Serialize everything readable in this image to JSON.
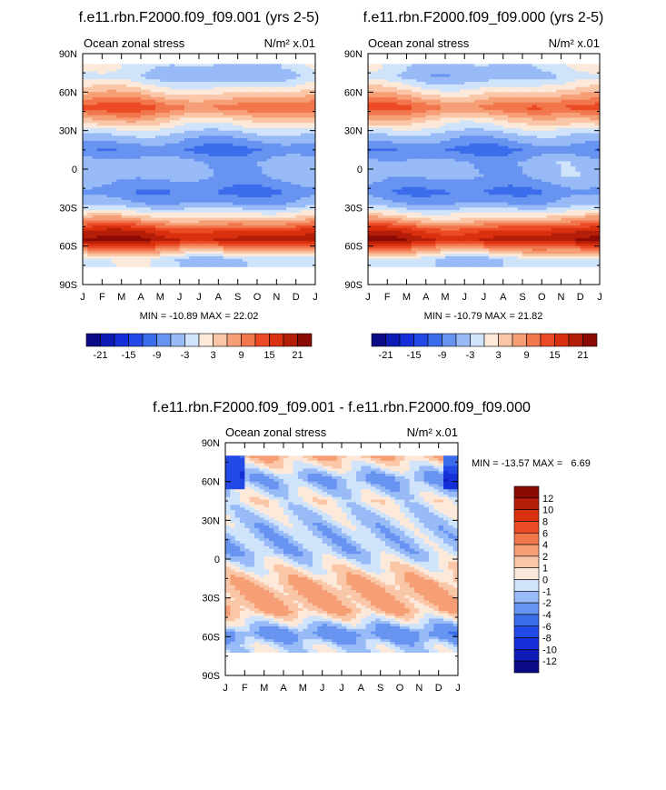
{
  "chart_data": [
    {
      "type": "heatmap",
      "title": "f.e11.rbn.F2000.f09_f09.001 (yrs 2-5)",
      "left_string": "Ocean zonal stress",
      "right_string": "N/m² x.01",
      "x_ticks": [
        "J",
        "F",
        "M",
        "A",
        "M",
        "J",
        "J",
        "A",
        "S",
        "O",
        "N",
        "D",
        "J"
      ],
      "y_ticks": [
        "90N",
        "60N",
        "30N",
        "0",
        "30S",
        "60S",
        "90S"
      ],
      "y_values": [
        90,
        60,
        30,
        0,
        -30,
        -60,
        -90
      ],
      "ylim": [
        -90,
        90
      ],
      "stats": "MIN = -10.89 MAX =  22.02",
      "min": -10.89,
      "max": 22.02,
      "colorbar": {
        "orientation": "horizontal",
        "levels": [
          -21,
          -18,
          -15,
          -12,
          -9,
          -6,
          -3,
          0,
          3,
          6,
          9,
          12,
          15,
          18,
          21
        ],
        "labels": [
          "-21",
          "-15",
          "-9",
          "-3",
          "3",
          "9",
          "15",
          "21"
        ],
        "colors": [
          "#0a0a86",
          "#0e1cb6",
          "#1530d8",
          "#2249e6",
          "#3a6cec",
          "#6694f0",
          "#98baf6",
          "#cfe3fb",
          "#fde9d9",
          "#f9c6a7",
          "#f69f77",
          "#f2764c",
          "#ec4a24",
          "#d9300f",
          "#b41e08",
          "#8b0b04"
        ]
      },
      "zonal_profile": [
        {
          "lat": 80,
          "value": -2
        },
        {
          "lat": 72,
          "value": -4
        },
        {
          "lat": 62,
          "value": 2
        },
        {
          "lat": 48,
          "value": 12
        },
        {
          "lat": 38,
          "value": 4
        },
        {
          "lat": 28,
          "value": -3
        },
        {
          "lat": 15,
          "value": -9
        },
        {
          "lat": 5,
          "value": -5
        },
        {
          "lat": -5,
          "value": -5
        },
        {
          "lat": -18,
          "value": -9
        },
        {
          "lat": -28,
          "value": -5
        },
        {
          "lat": -38,
          "value": 4
        },
        {
          "lat": -48,
          "value": 16
        },
        {
          "lat": -55,
          "value": 20
        },
        {
          "lat": -63,
          "value": 8
        },
        {
          "lat": -70,
          "value": -2
        }
      ]
    },
    {
      "type": "heatmap",
      "title": "f.e11.rbn.F2000.f09_f09.000 (yrs 2-5)",
      "left_string": "Ocean zonal stress",
      "right_string": "N/m² x.01",
      "x_ticks": [
        "J",
        "F",
        "M",
        "A",
        "M",
        "J",
        "J",
        "A",
        "S",
        "O",
        "N",
        "D",
        "J"
      ],
      "y_ticks": [
        "90N",
        "60N",
        "30N",
        "0",
        "30S",
        "60S",
        "90S"
      ],
      "y_values": [
        90,
        60,
        30,
        0,
        -30,
        -60,
        -90
      ],
      "ylim": [
        -90,
        90
      ],
      "stats": "MIN = -10.79 MAX =  21.82",
      "min": -10.79,
      "max": 21.82,
      "colorbar": {
        "orientation": "horizontal",
        "levels": [
          -21,
          -18,
          -15,
          -12,
          -9,
          -6,
          -3,
          0,
          3,
          6,
          9,
          12,
          15,
          18,
          21
        ],
        "labels": [
          "-21",
          "-15",
          "-9",
          "-3",
          "3",
          "9",
          "15",
          "21"
        ],
        "colors": [
          "#0a0a86",
          "#0e1cb6",
          "#1530d8",
          "#2249e6",
          "#3a6cec",
          "#6694f0",
          "#98baf6",
          "#cfe3fb",
          "#fde9d9",
          "#f9c6a7",
          "#f69f77",
          "#f2764c",
          "#ec4a24",
          "#d9300f",
          "#b41e08",
          "#8b0b04"
        ]
      },
      "zonal_profile": [
        {
          "lat": 80,
          "value": -2
        },
        {
          "lat": 72,
          "value": -4
        },
        {
          "lat": 62,
          "value": 2
        },
        {
          "lat": 48,
          "value": 12
        },
        {
          "lat": 38,
          "value": 4
        },
        {
          "lat": 28,
          "value": -3
        },
        {
          "lat": 15,
          "value": -9
        },
        {
          "lat": 5,
          "value": -5
        },
        {
          "lat": -5,
          "value": -5
        },
        {
          "lat": -18,
          "value": -9
        },
        {
          "lat": -28,
          "value": -5
        },
        {
          "lat": -38,
          "value": 4
        },
        {
          "lat": -48,
          "value": 16
        },
        {
          "lat": -55,
          "value": 20
        },
        {
          "lat": -63,
          "value": 8
        },
        {
          "lat": -70,
          "value": -2
        }
      ]
    },
    {
      "type": "heatmap",
      "title": "f.e11.rbn.F2000.f09_f09.001 - f.e11.rbn.F2000.f09_f09.000",
      "left_string": "Ocean zonal stress",
      "right_string": "N/m² x.01",
      "x_ticks": [
        "J",
        "F",
        "M",
        "A",
        "M",
        "J",
        "J",
        "A",
        "S",
        "O",
        "N",
        "D",
        "J"
      ],
      "y_ticks": [
        "90N",
        "60N",
        "30N",
        "0",
        "30S",
        "60S",
        "90S"
      ],
      "y_values": [
        90,
        60,
        30,
        0,
        -30,
        -60,
        -90
      ],
      "ylim": [
        -90,
        90
      ],
      "stats": "MIN = -13.57 MAX =   6.69",
      "min": -13.57,
      "max": 6.69,
      "colorbar": {
        "orientation": "vertical",
        "levels": [
          -12,
          -10,
          -8,
          -6,
          -4,
          -2,
          -1,
          0,
          1,
          2,
          4,
          6,
          8,
          10,
          12
        ],
        "labels": [
          "12",
          "10",
          "8",
          "6",
          "4",
          "2",
          "1",
          "0",
          "-1",
          "-2",
          "-4",
          "-6",
          "-8",
          "-10",
          "-12"
        ],
        "colors": [
          "#0a0a86",
          "#0e1cb6",
          "#1530d8",
          "#2249e6",
          "#3a6cec",
          "#6694f0",
          "#98baf6",
          "#cfe3fb",
          "#fde9d9",
          "#f9c6a7",
          "#f69f77",
          "#f2764c",
          "#ec4a24",
          "#d9300f",
          "#b41e08",
          "#8b0b04"
        ]
      },
      "zonal_profile": [
        {
          "lat": 80,
          "value": 1
        },
        {
          "lat": 62,
          "value": -2
        },
        {
          "lat": 45,
          "value": 1
        },
        {
          "lat": 25,
          "value": 0
        },
        {
          "lat": 5,
          "value": -1
        },
        {
          "lat": -20,
          "value": 1
        },
        {
          "lat": -40,
          "value": 1
        },
        {
          "lat": -58,
          "value": -3
        },
        {
          "lat": -68,
          "value": 0
        }
      ]
    }
  ]
}
